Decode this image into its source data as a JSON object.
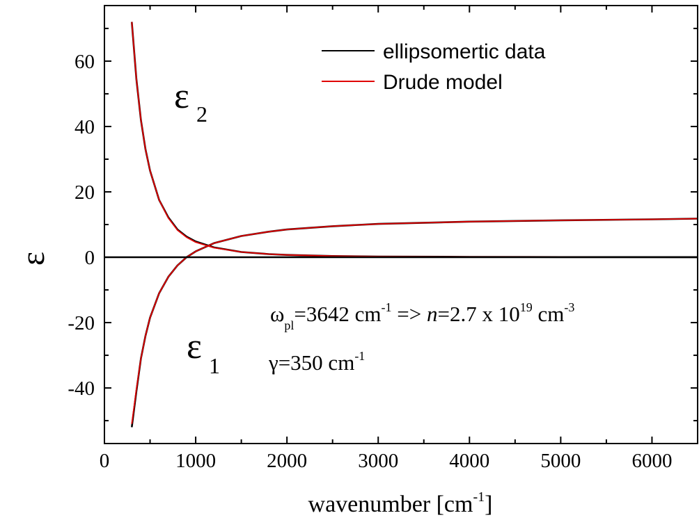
{
  "chart_data": {
    "type": "line",
    "xlabel": "wavenumber [cm",
    "xlabel_sup": "-1",
    "xlabel_tail": "]",
    "ylabel": "ε",
    "xlim": [
      0,
      6500
    ],
    "ylim": [
      -57,
      77
    ],
    "x_ticks": [
      0,
      1000,
      2000,
      3000,
      4000,
      5000,
      6000
    ],
    "y_ticks": [
      -40,
      -20,
      0,
      20,
      40,
      60
    ],
    "legend_position": "top-right",
    "legend": [
      {
        "label": "ellipsomertic data",
        "color": "#000000"
      },
      {
        "label": "Drude model",
        "color": "#e00000"
      }
    ],
    "annotations": {
      "eps2_symbol": "ε",
      "eps2_sub": "2",
      "eps1_symbol": "ε",
      "eps1_sub": "1",
      "omega_symbol": "ω",
      "omega_sub": "pl",
      "omega_eq": "=3642 cm",
      "omega_sup1": "-1",
      "arrow": " => ",
      "n_italic": "n",
      "n_eq": "=2.7 x 10",
      "n_sup": "19",
      "n_unit": " cm",
      "n_unit_sup": "-3",
      "gamma_symbol": "γ",
      "gamma_eq": "=350 cm",
      "gamma_sup": "-1"
    },
    "series": [
      {
        "name": "ellipsomertic data",
        "color": "#000000",
        "curves": {
          "eps2": {
            "x": [
              300,
              350,
              400,
              450,
              500,
              600,
              700,
              800,
              900,
              1000,
              1200,
              1500,
              1800,
              2000,
              2500,
              3000,
              4000,
              5000,
              6500
            ],
            "y": [
              72,
              54.5,
              42,
              33,
              26.5,
              17.5,
              12.2,
              8.5,
              6.3,
              4.8,
              3.0,
              1.6,
              0.95,
              0.7,
              0.37,
              0.22,
              0.1,
              0.05,
              0.02
            ]
          },
          "eps1": {
            "x": [
              300,
              350,
              400,
              450,
              500,
              600,
              700,
              800,
              900,
              1000,
              1200,
              1500,
              1800,
              2000,
              2500,
              3000,
              4000,
              5000,
              6000,
              6500
            ],
            "y": [
              -52,
              -41,
              -31,
              -24,
              -18.5,
              -11,
              -6,
              -2.5,
              0,
              1.8,
              4.3,
              6.5,
              7.8,
              8.5,
              9.5,
              10.2,
              10.9,
              11.3,
              11.6,
              11.8
            ]
          }
        }
      },
      {
        "name": "Drude model",
        "color": "#e00000",
        "curves": {
          "eps2": {
            "x": [
              300,
              350,
              400,
              450,
              500,
              600,
              700,
              800,
              900,
              1000,
              1200,
              1500,
              1800,
              2000,
              2500,
              3000,
              4000,
              5000,
              6500
            ],
            "y": [
              72,
              54.5,
              42,
              33,
              26.5,
              17.5,
              12.0,
              8.3,
              6.1,
              4.6,
              2.9,
              1.6,
              0.95,
              0.7,
              0.37,
              0.22,
              0.1,
              0.05,
              0.02
            ]
          },
          "eps1": {
            "x": [
              300,
              350,
              400,
              450,
              500,
              600,
              700,
              800,
              900,
              1000,
              1200,
              1500,
              1800,
              2000,
              2500,
              3000,
              4000,
              5000,
              6000,
              6500
            ],
            "y": [
              -51,
              -40.5,
              -31,
              -24,
              -18.5,
              -11,
              -6,
              -2.5,
              0,
              1.8,
              4.3,
              6.5,
              7.8,
              8.5,
              9.5,
              10.2,
              10.9,
              11.3,
              11.6,
              11.8
            ]
          }
        }
      }
    ]
  }
}
